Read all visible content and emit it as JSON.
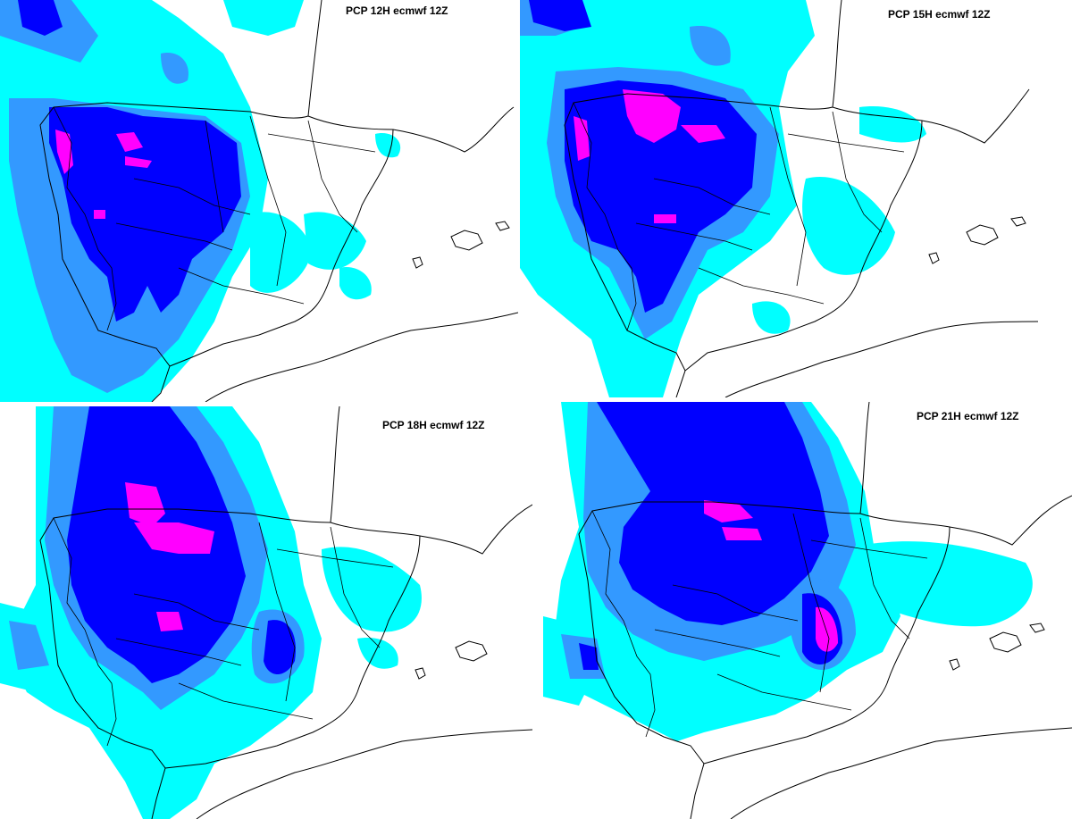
{
  "colors": {
    "level1": "#00ffff",
    "level2": "#3399ff",
    "level3": "#0000ff",
    "level4": "#ff00ff",
    "background": "#ffffff",
    "coastline": "#000000"
  },
  "panels": [
    {
      "title": "PCP 12H ecmwf 12Z"
    },
    {
      "title": "PCP 15H ecmwf 12Z"
    },
    {
      "title": "PCP 18H ecmwf 12Z"
    },
    {
      "title": "PCP 21H ecmwf 12Z"
    }
  ]
}
